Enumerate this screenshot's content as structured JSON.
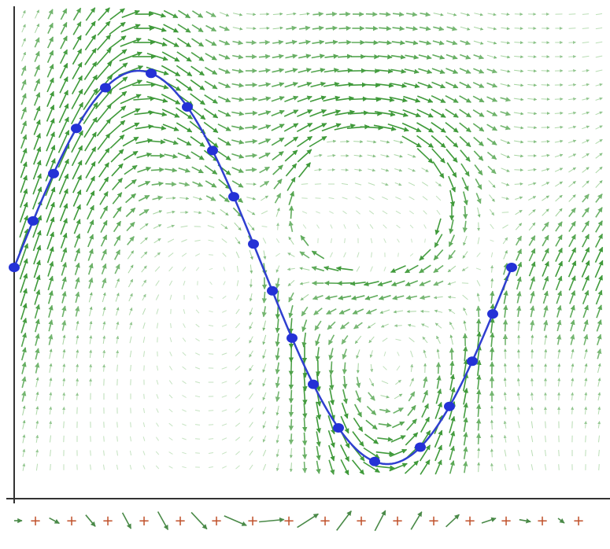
{
  "figure": {
    "description_free": true,
    "colors": {
      "background": "#ffffff",
      "axis": "#333333",
      "field_arrow": "#3f9a3a",
      "field_arrow_light": "#7cc073",
      "curve": "#2f3fd0",
      "curve_points": "#2431d6",
      "source_marker": "#c0502a",
      "bottom_arrow": "#4a8a48"
    },
    "icons": {
      "field_arrow": "arrow-icon",
      "sample_point": "dot-icon",
      "source_marker": "plus-icon"
    },
    "curve": {
      "type": "sine",
      "amplitude_units": 1,
      "periods": 1,
      "sample_count": 20
    },
    "bottom_strip": {
      "marker_count": 16,
      "marker_symbol": "+"
    }
  }
}
